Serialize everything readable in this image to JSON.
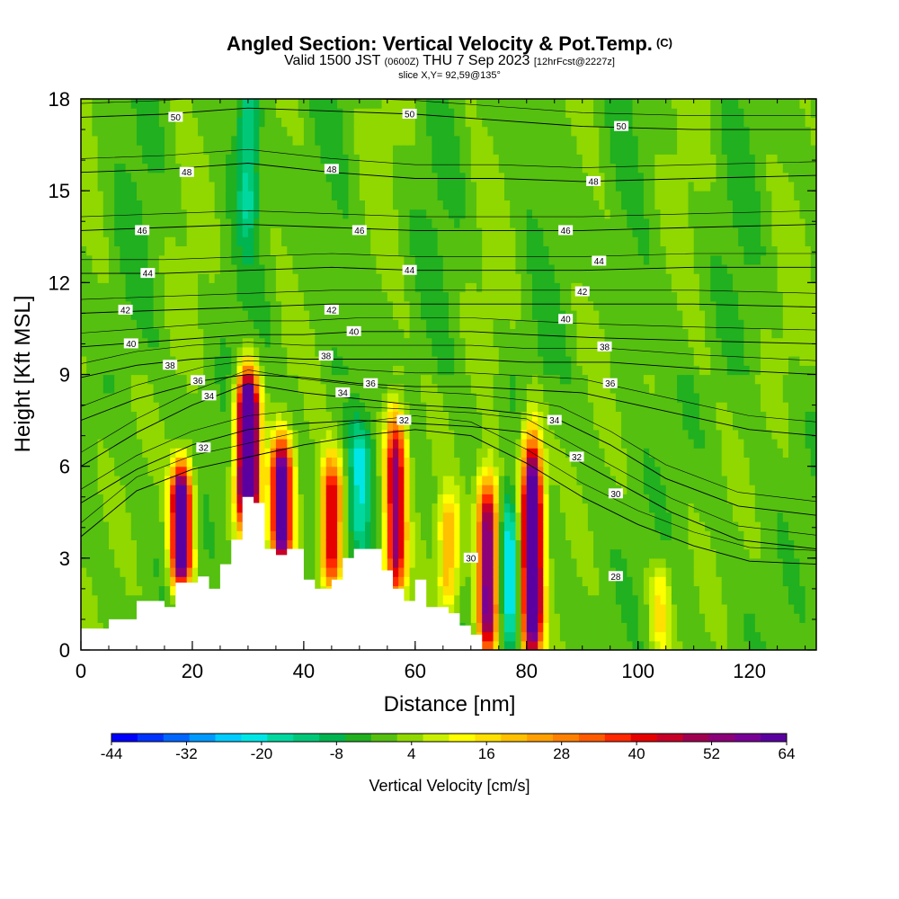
{
  "titles": {
    "main": "Angled Section: Vertical Velocity & Pot.Temp.",
    "copyright": "(C)",
    "valid_prefix": "Valid 1500 JST",
    "valid_z": "(0600Z)",
    "valid_date": "THU 7 Sep 2023",
    "forecast": "[12hrFcst@2227z]",
    "slice": "slice X,Y= 92,59@135°"
  },
  "chart_data": {
    "type": "heatmap",
    "xlabel": "Distance [nm]",
    "ylabel": "Height [Kft MSL]",
    "xlim": [
      0,
      132
    ],
    "ylim": [
      0,
      18
    ],
    "xticks": [
      0,
      20,
      40,
      60,
      80,
      100,
      120
    ],
    "yticks": [
      0,
      3,
      6,
      9,
      12,
      15,
      18
    ],
    "colorbar": {
      "label": "Vertical Velocity [cm/s]",
      "ticks": [
        -44,
        -32,
        -20,
        -8,
        4,
        16,
        28,
        40,
        52,
        64
      ],
      "colors": [
        "#0000ff",
        "#0033ff",
        "#0066ff",
        "#0099ff",
        "#00ccff",
        "#00e6e6",
        "#00d8a0",
        "#00c878",
        "#00b450",
        "#20b020",
        "#55c010",
        "#90d800",
        "#c8f000",
        "#ffff00",
        "#ffe000",
        "#ffc000",
        "#ffa000",
        "#ff8000",
        "#ff5a00",
        "#ff2800",
        "#e60000",
        "#c80028",
        "#a00050",
        "#8c0078",
        "#780096",
        "#5a00a0"
      ]
    },
    "terrain_kft": [
      [
        0,
        0.7
      ],
      [
        5,
        1.0
      ],
      [
        10,
        1.6
      ],
      [
        15,
        1.4
      ],
      [
        17,
        2.2
      ],
      [
        21,
        2.4
      ],
      [
        23,
        2.0
      ],
      [
        25,
        2.8
      ],
      [
        27,
        3.6
      ],
      [
        29,
        5.0
      ],
      [
        31,
        4.8
      ],
      [
        33,
        3.3
      ],
      [
        35,
        3.1
      ],
      [
        37,
        3.3
      ],
      [
        40,
        2.3
      ],
      [
        42,
        2.0
      ],
      [
        45,
        2.3
      ],
      [
        47,
        3.0
      ],
      [
        49,
        3.3
      ],
      [
        52,
        3.3
      ],
      [
        54,
        2.6
      ],
      [
        56,
        2.0
      ],
      [
        58,
        1.6
      ],
      [
        60,
        2.3
      ],
      [
        62,
        1.4
      ],
      [
        66,
        1.2
      ],
      [
        68,
        0.8
      ],
      [
        70,
        0.5
      ],
      [
        72,
        0.0
      ],
      [
        132,
        0.0
      ]
    ],
    "updrafts": [
      {
        "x": 18,
        "ymin": 2.5,
        "ymax": 5.6,
        "w": 76
      },
      {
        "x": 30,
        "ymin": 4.5,
        "ymax": 8.5,
        "w": 99
      },
      {
        "x": 36,
        "ymin": 3.2,
        "ymax": 6.4,
        "w": 70
      },
      {
        "x": 45,
        "ymin": 2.4,
        "ymax": 5.8,
        "w": 46
      },
      {
        "x": 56.5,
        "ymin": 2.2,
        "ymax": 7.2,
        "w": 52
      },
      {
        "x": 66,
        "ymin": 1.6,
        "ymax": 4.6,
        "w": 22
      },
      {
        "x": 73,
        "ymin": 0.3,
        "ymax": 5.0,
        "w": 60
      },
      {
        "x": 81,
        "ymin": 0.3,
        "ymax": 6.2,
        "w": 82
      },
      {
        "x": 104,
        "ymin": 0.3,
        "ymax": 2.4,
        "w": 14
      }
    ],
    "downdrafts": [
      {
        "x": 30,
        "ymin": 14.0,
        "ymax": 18.0,
        "w": -16
      },
      {
        "x": 50,
        "ymin": 3.5,
        "ymax": 7.0,
        "w": -18
      },
      {
        "x": 77,
        "ymin": 0.5,
        "ymax": 4.5,
        "w": -22
      }
    ],
    "isentropes": [
      {
        "value": 30,
        "label": "30",
        "points": [
          [
            0,
            3.7
          ],
          [
            10,
            5.2
          ],
          [
            20,
            5.9
          ],
          [
            30,
            6.3
          ],
          [
            40,
            6.7
          ],
          [
            50,
            7.0
          ],
          [
            60,
            7.2
          ],
          [
            70,
            7.0
          ],
          [
            80,
            6.1
          ],
          [
            90,
            5.0
          ],
          [
            100,
            4.1
          ],
          [
            110,
            3.4
          ],
          [
            120,
            2.9
          ],
          [
            132,
            2.8
          ]
        ]
      },
      {
        "value": 32,
        "label": "32",
        "points": [
          [
            0,
            4.8
          ],
          [
            10,
            5.9
          ],
          [
            20,
            6.7
          ],
          [
            30,
            7.2
          ],
          [
            40,
            7.4
          ],
          [
            50,
            7.5
          ],
          [
            60,
            7.4
          ],
          [
            70,
            7.3
          ],
          [
            80,
            7.1
          ],
          [
            88,
            6.3
          ],
          [
            96,
            5.5
          ],
          [
            106,
            4.5
          ],
          [
            118,
            3.6
          ],
          [
            132,
            3.3
          ]
        ]
      },
      {
        "value": 34,
        "label": "34",
        "points": [
          [
            0,
            6.0
          ],
          [
            10,
            7.1
          ],
          [
            20,
            8.0
          ],
          [
            30,
            8.7
          ],
          [
            40,
            8.4
          ],
          [
            50,
            8.2
          ],
          [
            60,
            8.0
          ],
          [
            70,
            7.9
          ],
          [
            80,
            7.7
          ],
          [
            86,
            7.5
          ],
          [
            95,
            6.7
          ],
          [
            105,
            5.6
          ],
          [
            118,
            4.7
          ],
          [
            132,
            4.4
          ]
        ]
      },
      {
        "value": 36,
        "label": "36",
        "points": [
          [
            0,
            7.5
          ],
          [
            10,
            8.2
          ],
          [
            22,
            8.8
          ],
          [
            30,
            9.0
          ],
          [
            40,
            8.9
          ],
          [
            50,
            8.7
          ],
          [
            60,
            8.6
          ],
          [
            70,
            8.6
          ],
          [
            80,
            8.5
          ],
          [
            90,
            8.4
          ],
          [
            100,
            8.0
          ],
          [
            110,
            7.6
          ],
          [
            120,
            7.2
          ],
          [
            132,
            7.0
          ]
        ]
      },
      {
        "value": 38,
        "label": "38",
        "points": [
          [
            0,
            8.9
          ],
          [
            10,
            9.3
          ],
          [
            20,
            9.5
          ],
          [
            30,
            9.6
          ],
          [
            40,
            9.5
          ],
          [
            50,
            9.5
          ],
          [
            60,
            9.5
          ],
          [
            70,
            9.5
          ],
          [
            80,
            9.4
          ],
          [
            95,
            9.4
          ],
          [
            110,
            9.2
          ],
          [
            132,
            9.0
          ]
        ]
      },
      {
        "value": 40,
        "label": "40",
        "points": [
          [
            0,
            9.9
          ],
          [
            15,
            10.1
          ],
          [
            30,
            10.3
          ],
          [
            40,
            10.3
          ],
          [
            50,
            10.4
          ],
          [
            60,
            10.4
          ],
          [
            70,
            10.4
          ],
          [
            80,
            10.3
          ],
          [
            92,
            10.2
          ],
          [
            110,
            10.1
          ],
          [
            132,
            10.0
          ]
        ]
      },
      {
        "value": 42,
        "label": "42",
        "points": [
          [
            0,
            11.0
          ],
          [
            15,
            11.1
          ],
          [
            30,
            11.2
          ],
          [
            45,
            11.3
          ],
          [
            60,
            11.3
          ],
          [
            75,
            11.3
          ],
          [
            90,
            11.3
          ],
          [
            110,
            11.3
          ],
          [
            132,
            11.2
          ]
        ]
      },
      {
        "value": 44,
        "label": "44",
        "points": [
          [
            0,
            12.3
          ],
          [
            15,
            12.3
          ],
          [
            30,
            12.4
          ],
          [
            45,
            12.5
          ],
          [
            60,
            12.4
          ],
          [
            75,
            12.4
          ],
          [
            90,
            12.4
          ],
          [
            110,
            12.5
          ],
          [
            132,
            12.5
          ]
        ]
      },
      {
        "value": 46,
        "label": "46",
        "points": [
          [
            0,
            13.7
          ],
          [
            15,
            13.8
          ],
          [
            30,
            13.9
          ],
          [
            45,
            13.8
          ],
          [
            60,
            13.7
          ],
          [
            75,
            13.7
          ],
          [
            90,
            13.7
          ],
          [
            110,
            13.8
          ],
          [
            132,
            13.9
          ]
        ]
      },
      {
        "value": 48,
        "label": "48",
        "points": [
          [
            0,
            15.6
          ],
          [
            15,
            15.7
          ],
          [
            30,
            15.9
          ],
          [
            45,
            15.6
          ],
          [
            60,
            15.4
          ],
          [
            75,
            15.4
          ],
          [
            90,
            15.3
          ],
          [
            110,
            15.4
          ],
          [
            132,
            15.5
          ]
        ]
      },
      {
        "value": 50,
        "label": "50",
        "points": [
          [
            0,
            17.4
          ],
          [
            15,
            17.5
          ],
          [
            30,
            17.7
          ],
          [
            45,
            17.6
          ],
          [
            60,
            17.5
          ],
          [
            75,
            17.3
          ],
          [
            90,
            17.1
          ],
          [
            110,
            17.0
          ],
          [
            132,
            17.0
          ]
        ]
      }
    ],
    "contour_labels": [
      {
        "text": "50",
        "x": 17,
        "y": 17.4
      },
      {
        "text": "50",
        "x": 59,
        "y": 17.5
      },
      {
        "text": "50",
        "x": 97,
        "y": 17.1
      },
      {
        "text": "48",
        "x": 19,
        "y": 15.6
      },
      {
        "text": "48",
        "x": 45,
        "y": 15.7
      },
      {
        "text": "48",
        "x": 92,
        "y": 15.3
      },
      {
        "text": "46",
        "x": 11,
        "y": 13.7
      },
      {
        "text": "46",
        "x": 50,
        "y": 13.7
      },
      {
        "text": "46",
        "x": 87,
        "y": 13.7
      },
      {
        "text": "44",
        "x": 12,
        "y": 12.3
      },
      {
        "text": "44",
        "x": 59,
        "y": 12.4
      },
      {
        "text": "44",
        "x": 93,
        "y": 12.7
      },
      {
        "text": "42",
        "x": 8,
        "y": 11.1
      },
      {
        "text": "42",
        "x": 45,
        "y": 11.1
      },
      {
        "text": "42",
        "x": 90,
        "y": 11.7
      },
      {
        "text": "40",
        "x": 9,
        "y": 10.0
      },
      {
        "text": "40",
        "x": 49,
        "y": 10.4
      },
      {
        "text": "40",
        "x": 87,
        "y": 10.8
      },
      {
        "text": "38",
        "x": 16,
        "y": 9.3
      },
      {
        "text": "38",
        "x": 44,
        "y": 9.6
      },
      {
        "text": "38",
        "x": 94,
        "y": 9.9
      },
      {
        "text": "36",
        "x": 21,
        "y": 8.8
      },
      {
        "text": "36",
        "x": 52,
        "y": 8.7
      },
      {
        "text": "36",
        "x": 95,
        "y": 8.7
      },
      {
        "text": "34",
        "x": 23,
        "y": 8.3
      },
      {
        "text": "34",
        "x": 47,
        "y": 8.4
      },
      {
        "text": "34",
        "x": 85,
        "y": 7.5
      },
      {
        "text": "32",
        "x": 22,
        "y": 6.6
      },
      {
        "text": "32",
        "x": 58,
        "y": 7.5
      },
      {
        "text": "32",
        "x": 89,
        "y": 6.3
      },
      {
        "text": "30",
        "x": 70,
        "y": 3.0
      },
      {
        "text": "30",
        "x": 96,
        "y": 5.1
      },
      {
        "text": "28",
        "x": 96,
        "y": 2.4
      }
    ]
  }
}
